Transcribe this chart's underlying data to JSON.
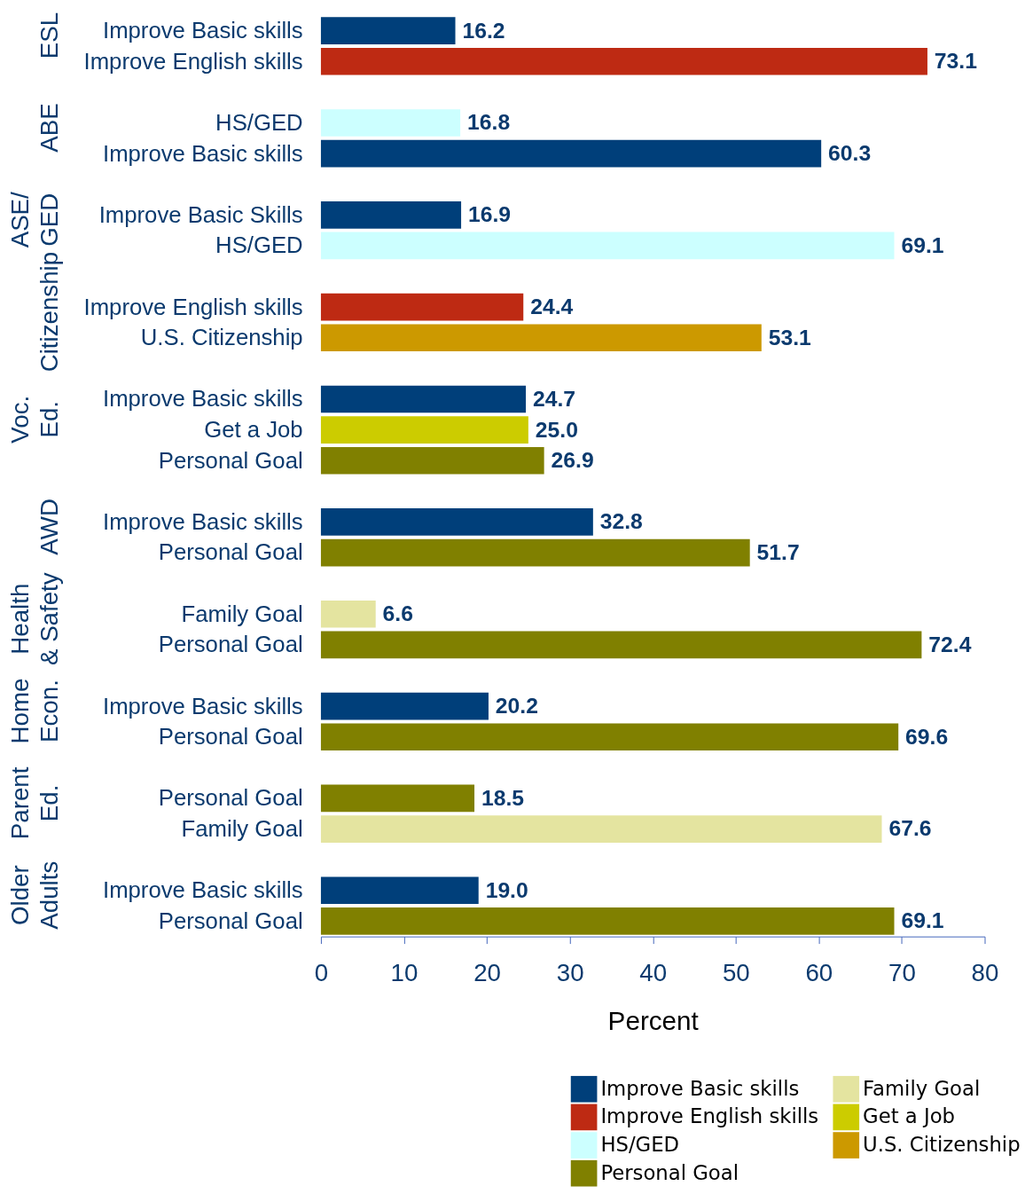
{
  "chart_data": {
    "type": "bar",
    "orientation": "horizontal",
    "stacked": true,
    "categories": [
      "Improve Basic skills",
      "Improve English skills",
      null,
      "HS/GED",
      "Improve Basic skills",
      null,
      "Improve Basic Skills",
      "HS/GED",
      null,
      "Improve English skills",
      "U.S. Citizenship",
      null,
      "Improve Basic skills",
      "Get a Job",
      "Personal Goal",
      null,
      "Improve Basic skills",
      "Personal Goal",
      null,
      "Family Goal",
      "Personal Goal",
      null,
      "Improve Basic skills",
      "Personal Goal",
      null,
      "Personal Goal",
      "Family Goal",
      null,
      "Improve Basic skills",
      "Personal Goal"
    ],
    "series": [
      {
        "name": "Improve Basic skills",
        "color": "#003f7a",
        "values": [
          16.2,
          null,
          null,
          null,
          60.3,
          null,
          16.9,
          null,
          null,
          null,
          null,
          null,
          24.7,
          null,
          null,
          null,
          32.8,
          null,
          null,
          null,
          null,
          null,
          20.2,
          null,
          null,
          null,
          null,
          null,
          19.0,
          null
        ],
        "value_labels": [
          "16.2",
          null,
          null,
          null,
          "60.3",
          null,
          "16.9",
          null,
          null,
          null,
          null,
          null,
          "24.7",
          null,
          null,
          null,
          "32.8",
          null,
          null,
          null,
          null,
          null,
          "20.2",
          null,
          null,
          null,
          null,
          null,
          "19.0",
          null
        ]
      },
      {
        "name": "Improve English skills",
        "color": "#be2a13",
        "values": [
          null,
          73.1,
          null,
          null,
          null,
          null,
          null,
          null,
          null,
          24.4,
          null,
          null,
          null,
          null,
          null,
          null,
          null,
          null,
          null,
          null,
          null,
          null,
          null,
          null,
          null,
          null,
          null,
          null,
          null,
          null
        ],
        "value_labels": [
          null,
          "73.1",
          null,
          null,
          null,
          null,
          null,
          null,
          null,
          "24.4",
          null,
          null,
          null,
          null,
          null,
          null,
          null,
          null,
          null,
          null,
          null,
          null,
          null,
          null,
          null,
          null,
          null,
          null,
          null,
          null
        ]
      },
      {
        "name": "HS/GED",
        "color": "#ccffff",
        "values": [
          null,
          null,
          null,
          16.8,
          null,
          null,
          null,
          69.1,
          null,
          null,
          null,
          null,
          null,
          null,
          null,
          null,
          null,
          null,
          null,
          null,
          null,
          null,
          null,
          null,
          null,
          null,
          null,
          null,
          null,
          null
        ],
        "value_labels": [
          null,
          null,
          null,
          "16.8",
          null,
          null,
          null,
          "69.1",
          null,
          null,
          null,
          null,
          null,
          null,
          null,
          null,
          null,
          null,
          null,
          null,
          null,
          null,
          null,
          null,
          null,
          null,
          null,
          null,
          null,
          null
        ]
      },
      {
        "name": "Personal Goal",
        "color": "#808000",
        "values": [
          null,
          null,
          null,
          null,
          null,
          null,
          null,
          null,
          null,
          null,
          null,
          null,
          null,
          null,
          26.9,
          null,
          null,
          51.7,
          null,
          null,
          72.4,
          null,
          null,
          69.6,
          null,
          18.5,
          null,
          null,
          null,
          69.1
        ],
        "value_labels": [
          null,
          null,
          null,
          null,
          null,
          null,
          null,
          null,
          null,
          null,
          null,
          null,
          null,
          null,
          "26.9",
          null,
          null,
          "51.7",
          null,
          null,
          "72.4",
          null,
          null,
          "69.6",
          null,
          "18.5",
          null,
          null,
          null,
          "69.1"
        ]
      },
      {
        "name": "Family Goal",
        "color": "#e4e4a0",
        "values": [
          null,
          null,
          null,
          null,
          null,
          null,
          null,
          null,
          null,
          null,
          null,
          null,
          null,
          null,
          null,
          null,
          null,
          null,
          null,
          6.6,
          null,
          null,
          null,
          null,
          null,
          null,
          67.6,
          null,
          null,
          null
        ],
        "value_labels": [
          null,
          null,
          null,
          null,
          null,
          null,
          null,
          null,
          null,
          null,
          null,
          null,
          null,
          null,
          null,
          null,
          null,
          null,
          null,
          "6.6",
          null,
          null,
          null,
          null,
          null,
          null,
          "67.6",
          null,
          null,
          null
        ]
      },
      {
        "name": "Get a Job",
        "color": "#cccc00",
        "values": [
          null,
          null,
          null,
          null,
          null,
          null,
          null,
          null,
          null,
          null,
          null,
          null,
          null,
          25.0,
          null,
          null,
          null,
          null,
          null,
          null,
          null,
          null,
          null,
          null,
          null,
          null,
          null,
          null,
          null,
          null
        ],
        "value_labels": [
          null,
          null,
          null,
          null,
          null,
          null,
          null,
          null,
          null,
          null,
          null,
          null,
          null,
          "25.0",
          null,
          null,
          null,
          null,
          null,
          null,
          null,
          null,
          null,
          null,
          null,
          null,
          null,
          null,
          null,
          null
        ]
      },
      {
        "name": "U.S. Citizenship",
        "color": "#cc9900",
        "values": [
          null,
          null,
          null,
          null,
          null,
          null,
          null,
          null,
          null,
          null,
          53.1,
          null,
          null,
          null,
          null,
          null,
          null,
          null,
          null,
          null,
          null,
          null,
          null,
          null,
          null,
          null,
          null,
          null,
          null,
          null
        ],
        "value_labels": [
          null,
          null,
          null,
          null,
          null,
          null,
          null,
          null,
          null,
          null,
          "53.1",
          null,
          null,
          null,
          null,
          null,
          null,
          null,
          null,
          null,
          null,
          null,
          null,
          null,
          null,
          null,
          null,
          null,
          null,
          null
        ]
      }
    ],
    "annotations": [
      "ESL",
      "ABE",
      "ASE/\nGED",
      "Citizenship",
      "Voc.\nEd.",
      "AWD",
      "Health\n& Safety",
      "Home\nEcon.",
      "Parent\nEd.",
      "Older\nAdults"
    ],
    "xlabel": "Percent",
    "xlim": [
      0,
      80
    ],
    "xticks": [
      0,
      10,
      20,
      30,
      40,
      50,
      60,
      70,
      80
    ],
    "legend": "bottom right"
  }
}
